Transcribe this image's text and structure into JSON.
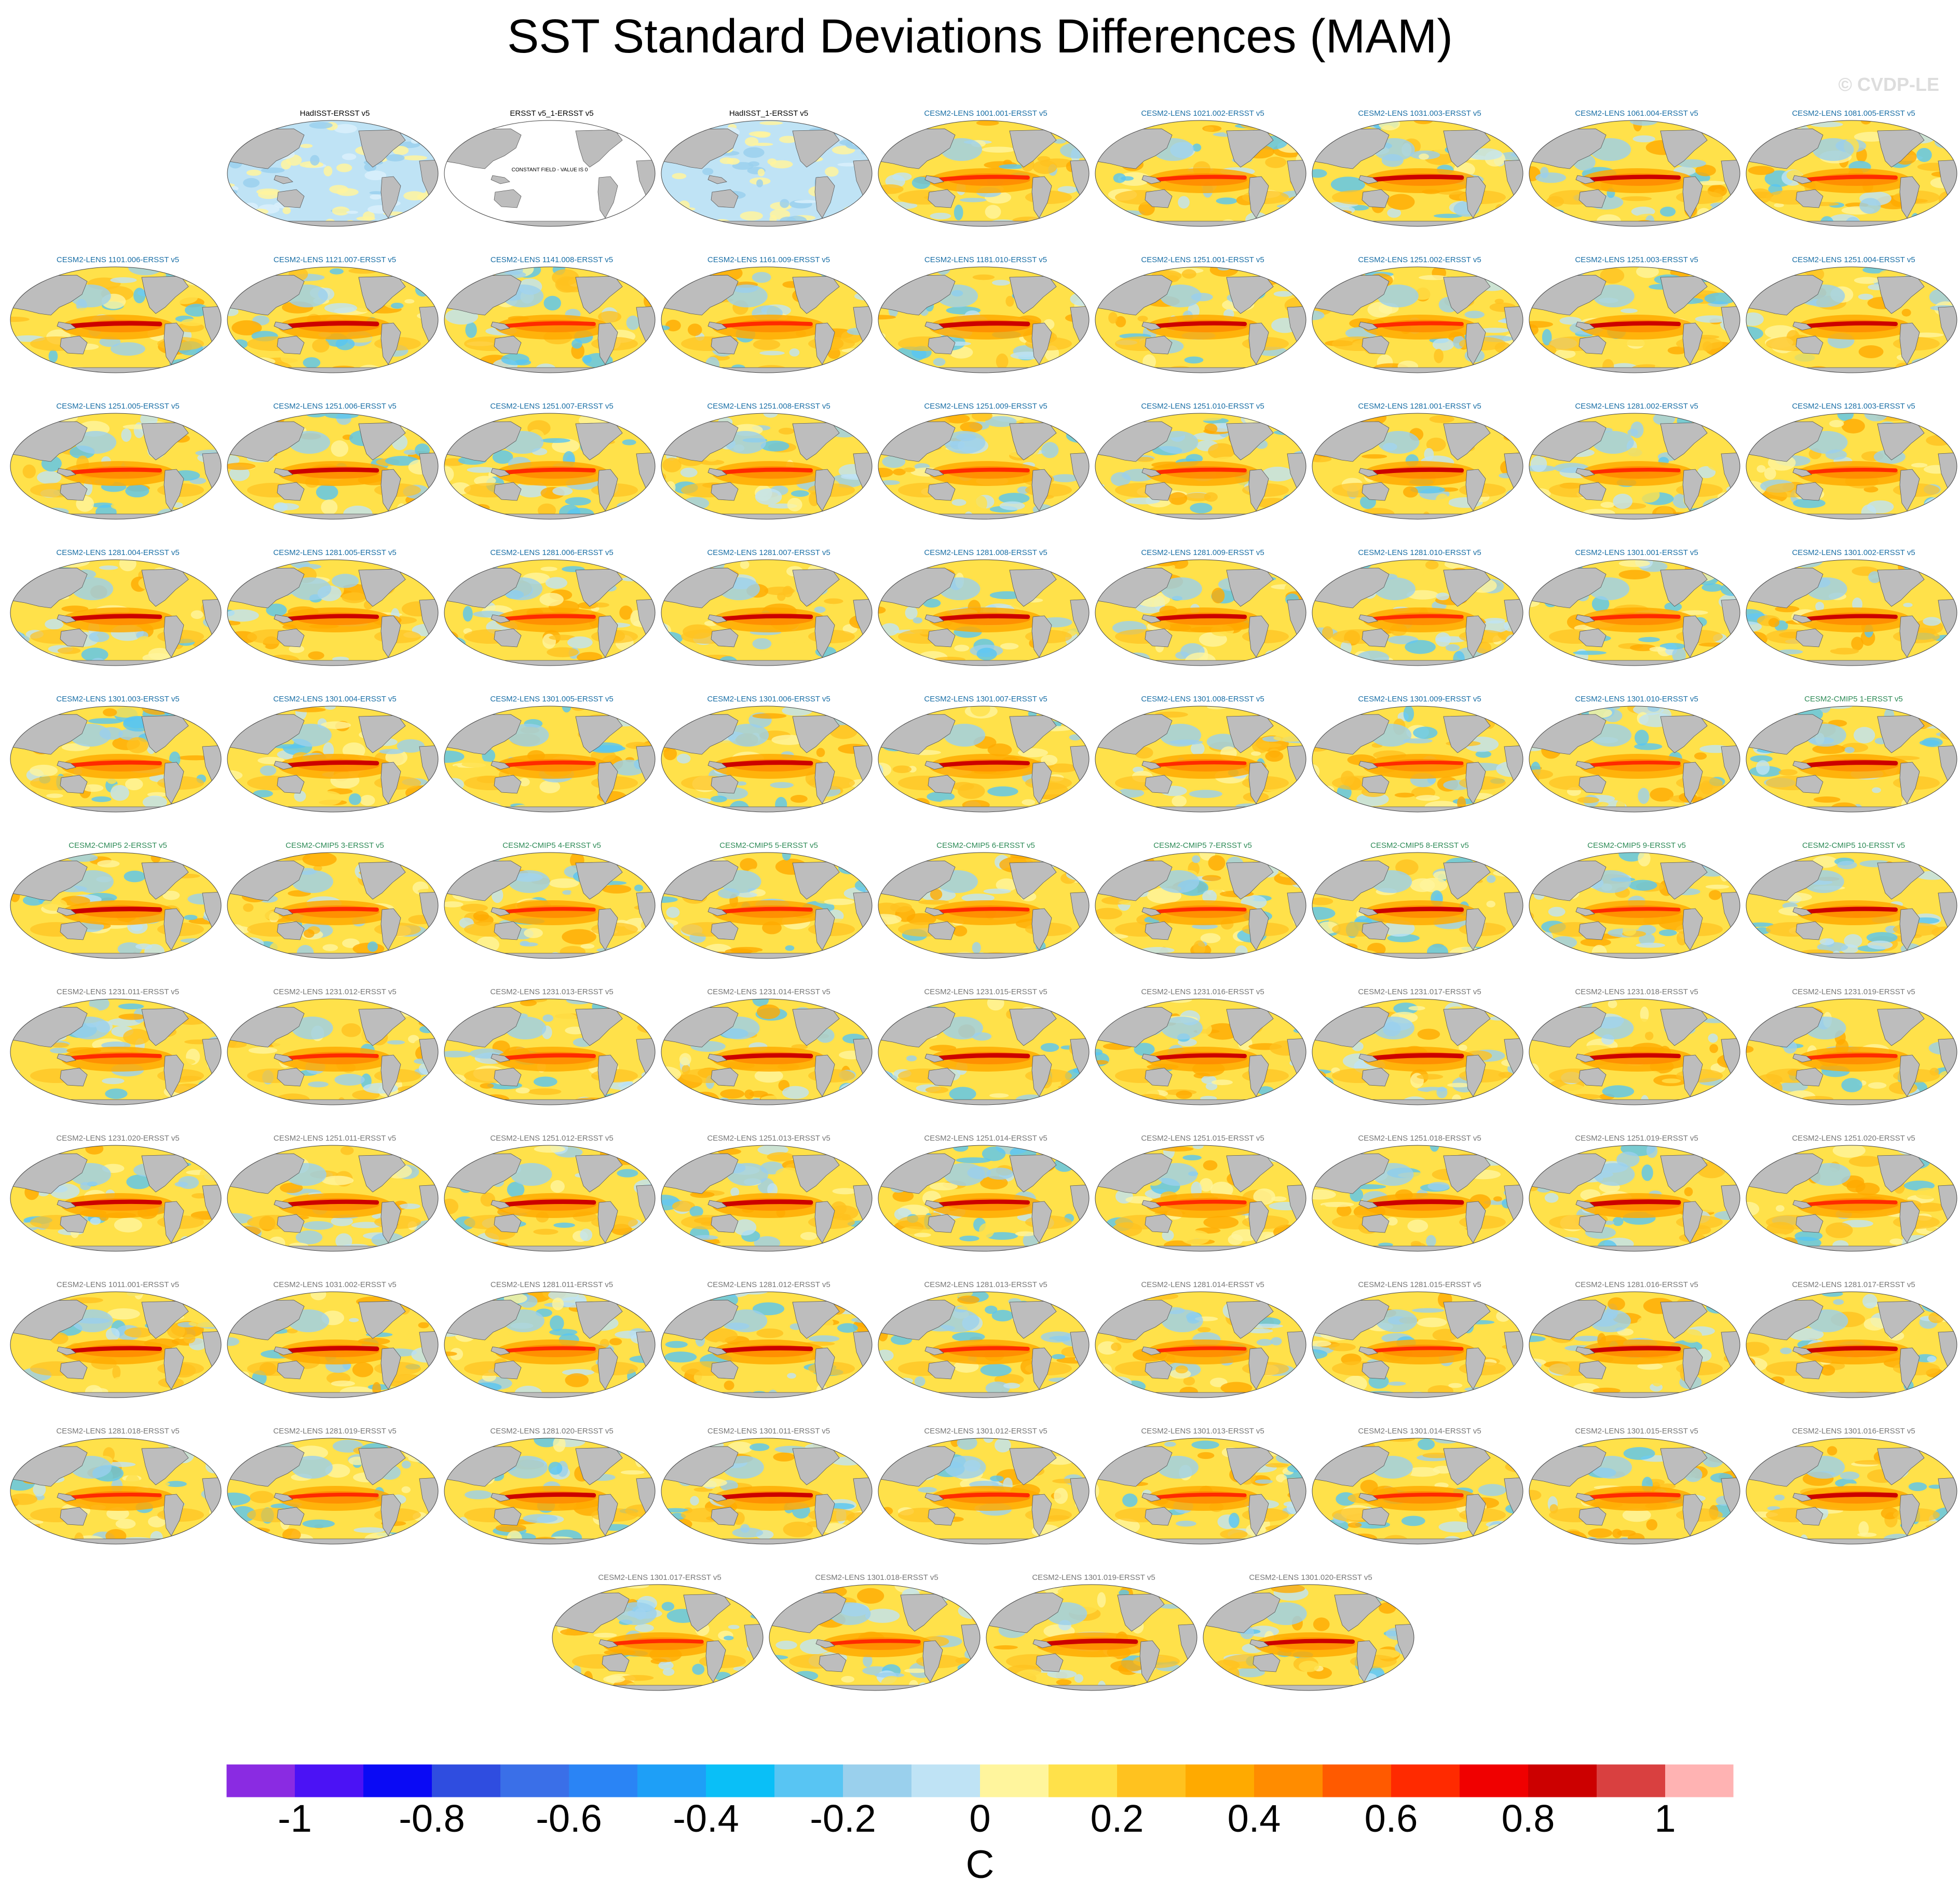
{
  "title": "SST Standard Deviations Differences (MAM)",
  "watermark": "© CVDP-LE",
  "chart_data": {
    "type": "heatmap",
    "title": "SST Standard Deviations Differences (MAM)",
    "units": "C",
    "projection": "global map (Robinson-like, Pacific-centered)",
    "colorbar": {
      "ticks": [
        -1,
        -0.8,
        -0.6,
        -0.4,
        -0.2,
        0,
        0.2,
        0.4,
        0.6,
        0.8,
        1
      ],
      "tick_labels": [
        "-1",
        "-0.8",
        "-0.6",
        "-0.4",
        "-0.2",
        "0",
        "0.2",
        "0.4",
        "0.6",
        "0.8",
        "1"
      ],
      "range": [
        -1.1,
        1.1
      ],
      "step": 0.1,
      "colors": [
        "#8a2be2",
        "#4b12f5",
        "#0a0af5",
        "#2f4de0",
        "#3a6fe8",
        "#2a84f5",
        "#1e9ff7",
        "#0abff7",
        "#58c5f3",
        "#9ad0ed",
        "#bfe3f5",
        "#fff59d",
        "#ffe14a",
        "#ffc21f",
        "#ffaa00",
        "#ff8c00",
        "#ff5a00",
        "#ff2a00",
        "#f00000",
        "#cc0000",
        "#d94040",
        "#ffb3b3"
      ]
    },
    "panels": [
      {
        "label": "HadISST-ERSST v5",
        "group": "obs",
        "pattern": "obs"
      },
      {
        "label": "ERSST v5_1-ERSST v5",
        "group": "obs",
        "pattern": "constant",
        "annotation": "CONSTANT FIELD - VALUE IS 0"
      },
      {
        "label": "HadISST_1-ERSST v5",
        "group": "obs",
        "pattern": "obs"
      },
      {
        "label": "CESM2-LENS 1001.001-ERSST v5",
        "group": "lens"
      },
      {
        "label": "CESM2-LENS 1021.002-ERSST v5",
        "group": "lens"
      },
      {
        "label": "CESM2-LENS 1031.003-ERSST v5",
        "group": "lens"
      },
      {
        "label": "CESM2-LENS 1061.004-ERSST v5",
        "group": "lens"
      },
      {
        "label": "CESM2-LENS 1081.005-ERSST v5",
        "group": "lens"
      },
      {
        "label": "CESM2-LENS 1101.006-ERSST v5",
        "group": "lens"
      },
      {
        "label": "CESM2-LENS 1121.007-ERSST v5",
        "group": "lens"
      },
      {
        "label": "CESM2-LENS 1141.008-ERSST v5",
        "group": "lens"
      },
      {
        "label": "CESM2-LENS 1161.009-ERSST v5",
        "group": "lens"
      },
      {
        "label": "CESM2-LENS 1181.010-ERSST v5",
        "group": "lens"
      },
      {
        "label": "CESM2-LENS 1251.001-ERSST v5",
        "group": "lens"
      },
      {
        "label": "CESM2-LENS 1251.002-ERSST v5",
        "group": "lens"
      },
      {
        "label": "CESM2-LENS 1251.003-ERSST v5",
        "group": "lens"
      },
      {
        "label": "CESM2-LENS 1251.004-ERSST v5",
        "group": "lens"
      },
      {
        "label": "CESM2-LENS 1251.005-ERSST v5",
        "group": "lens"
      },
      {
        "label": "CESM2-LENS 1251.006-ERSST v5",
        "group": "lens"
      },
      {
        "label": "CESM2-LENS 1251.007-ERSST v5",
        "group": "lens"
      },
      {
        "label": "CESM2-LENS 1251.008-ERSST v5",
        "group": "lens"
      },
      {
        "label": "CESM2-LENS 1251.009-ERSST v5",
        "group": "lens"
      },
      {
        "label": "CESM2-LENS 1251.010-ERSST v5",
        "group": "lens"
      },
      {
        "label": "CESM2-LENS 1281.001-ERSST v5",
        "group": "lens"
      },
      {
        "label": "CESM2-LENS 1281.002-ERSST v5",
        "group": "lens"
      },
      {
        "label": "CESM2-LENS 1281.003-ERSST v5",
        "group": "lens"
      },
      {
        "label": "CESM2-LENS 1281.004-ERSST v5",
        "group": "lens"
      },
      {
        "label": "CESM2-LENS 1281.005-ERSST v5",
        "group": "lens"
      },
      {
        "label": "CESM2-LENS 1281.006-ERSST v5",
        "group": "lens"
      },
      {
        "label": "CESM2-LENS 1281.007-ERSST v5",
        "group": "lens"
      },
      {
        "label": "CESM2-LENS 1281.008-ERSST v5",
        "group": "lens"
      },
      {
        "label": "CESM2-LENS 1281.009-ERSST v5",
        "group": "lens"
      },
      {
        "label": "CESM2-LENS 1281.010-ERSST v5",
        "group": "lens"
      },
      {
        "label": "CESM2-LENS 1301.001-ERSST v5",
        "group": "lens"
      },
      {
        "label": "CESM2-LENS 1301.002-ERSST v5",
        "group": "lens"
      },
      {
        "label": "CESM2-LENS 1301.003-ERSST v5",
        "group": "lens"
      },
      {
        "label": "CESM2-LENS 1301.004-ERSST v5",
        "group": "lens"
      },
      {
        "label": "CESM2-LENS 1301.005-ERSST v5",
        "group": "lens"
      },
      {
        "label": "CESM2-LENS 1301.006-ERSST v5",
        "group": "lens"
      },
      {
        "label": "CESM2-LENS 1301.007-ERSST v5",
        "group": "lens"
      },
      {
        "label": "CESM2-LENS 1301.008-ERSST v5",
        "group": "lens"
      },
      {
        "label": "CESM2-LENS 1301.009-ERSST v5",
        "group": "lens"
      },
      {
        "label": "CESM2-LENS 1301.010-ERSST v5",
        "group": "lens"
      },
      {
        "label": "CESM2-CMIP5 1-ERSST v5",
        "group": "cmip"
      },
      {
        "label": "CESM2-CMIP5 2-ERSST v5",
        "group": "cmip"
      },
      {
        "label": "CESM2-CMIP5 3-ERSST v5",
        "group": "cmip"
      },
      {
        "label": "CESM2-CMIP5 4-ERSST v5",
        "group": "cmip"
      },
      {
        "label": "CESM2-CMIP5 5-ERSST v5",
        "group": "cmip"
      },
      {
        "label": "CESM2-CMIP5 6-ERSST v5",
        "group": "cmip"
      },
      {
        "label": "CESM2-CMIP5 7-ERSST v5",
        "group": "cmip"
      },
      {
        "label": "CESM2-CMIP5 8-ERSST v5",
        "group": "cmip"
      },
      {
        "label": "CESM2-CMIP5 9-ERSST v5",
        "group": "cmip"
      },
      {
        "label": "CESM2-CMIP5 10-ERSST v5",
        "group": "cmip"
      },
      {
        "label": "CESM2-LENS 1231.011-ERSST v5",
        "group": "grey"
      },
      {
        "label": "CESM2-LENS 1231.012-ERSST v5",
        "group": "grey"
      },
      {
        "label": "CESM2-LENS 1231.013-ERSST v5",
        "group": "grey"
      },
      {
        "label": "CESM2-LENS 1231.014-ERSST v5",
        "group": "grey"
      },
      {
        "label": "CESM2-LENS 1231.015-ERSST v5",
        "group": "grey"
      },
      {
        "label": "CESM2-LENS 1231.016-ERSST v5",
        "group": "grey"
      },
      {
        "label": "CESM2-LENS 1231.017-ERSST v5",
        "group": "grey"
      },
      {
        "label": "CESM2-LENS 1231.018-ERSST v5",
        "group": "grey"
      },
      {
        "label": "CESM2-LENS 1231.019-ERSST v5",
        "group": "grey"
      },
      {
        "label": "CESM2-LENS 1231.020-ERSST v5",
        "group": "grey"
      },
      {
        "label": "CESM2-LENS 1251.011-ERSST v5",
        "group": "grey"
      },
      {
        "label": "CESM2-LENS 1251.012-ERSST v5",
        "group": "grey"
      },
      {
        "label": "CESM2-LENS 1251.013-ERSST v5",
        "group": "grey"
      },
      {
        "label": "CESM2-LENS 1251.014-ERSST v5",
        "group": "grey"
      },
      {
        "label": "CESM2-LENS 1251.015-ERSST v5",
        "group": "grey"
      },
      {
        "label": "CESM2-LENS 1251.018-ERSST v5",
        "group": "grey"
      },
      {
        "label": "CESM2-LENS 1251.019-ERSST v5",
        "group": "grey"
      },
      {
        "label": "CESM2-LENS 1251.020-ERSST v5",
        "group": "grey"
      },
      {
        "label": "CESM2-LENS 1011.001-ERSST v5",
        "group": "grey"
      },
      {
        "label": "CESM2-LENS 1031.002-ERSST v5",
        "group": "grey"
      },
      {
        "label": "CESM2-LENS 1281.011-ERSST v5",
        "group": "grey"
      },
      {
        "label": "CESM2-LENS 1281.012-ERSST v5",
        "group": "grey"
      },
      {
        "label": "CESM2-LENS 1281.013-ERSST v5",
        "group": "grey"
      },
      {
        "label": "CESM2-LENS 1281.014-ERSST v5",
        "group": "grey"
      },
      {
        "label": "CESM2-LENS 1281.015-ERSST v5",
        "group": "grey"
      },
      {
        "label": "CESM2-LENS 1281.016-ERSST v5",
        "group": "grey"
      },
      {
        "label": "CESM2-LENS 1281.017-ERSST v5",
        "group": "grey"
      },
      {
        "label": "CESM2-LENS 1281.018-ERSST v5",
        "group": "grey"
      },
      {
        "label": "CESM2-LENS 1281.019-ERSST v5",
        "group": "grey"
      },
      {
        "label": "CESM2-LENS 1281.020-ERSST v5",
        "group": "grey"
      },
      {
        "label": "CESM2-LENS 1301.011-ERSST v5",
        "group": "grey"
      },
      {
        "label": "CESM2-LENS 1301.012-ERSST v5",
        "group": "grey"
      },
      {
        "label": "CESM2-LENS 1301.013-ERSST v5",
        "group": "grey"
      },
      {
        "label": "CESM2-LENS 1301.014-ERSST v5",
        "group": "grey"
      },
      {
        "label": "CESM2-LENS 1301.015-ERSST v5",
        "group": "grey"
      },
      {
        "label": "CESM2-LENS 1301.016-ERSST v5",
        "group": "grey"
      },
      {
        "label": "CESM2-LENS 1301.017-ERSST v5",
        "group": "grey"
      },
      {
        "label": "CESM2-LENS 1301.018-ERSST v5",
        "group": "grey"
      },
      {
        "label": "CESM2-LENS 1301.019-ERSST v5",
        "group": "grey"
      },
      {
        "label": "CESM2-LENS 1301.020-ERSST v5",
        "group": "grey"
      }
    ]
  },
  "colors": {
    "land": "#bdbdbd",
    "coast": "#555555",
    "lens_title": "#1a6fa6",
    "cmip_title": "#2e8b57",
    "grey_title": "#777777"
  }
}
